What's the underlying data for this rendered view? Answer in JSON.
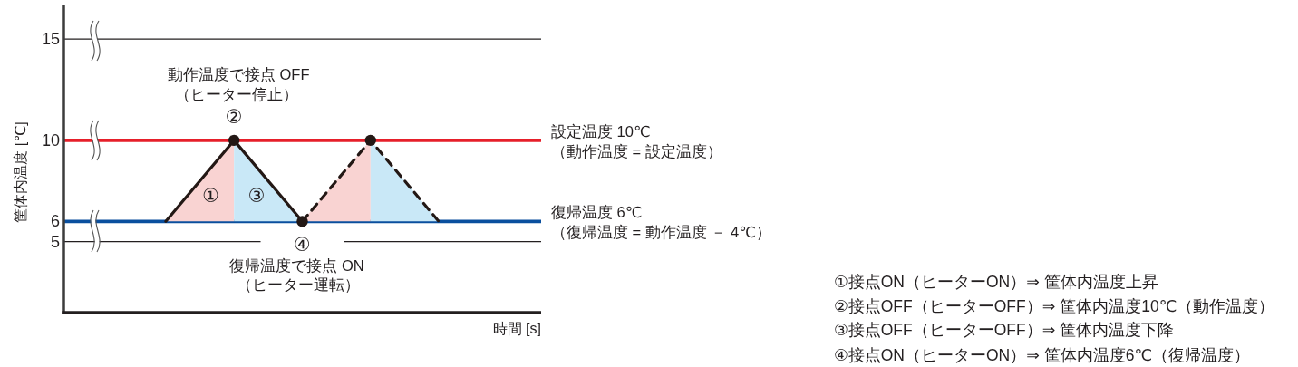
{
  "chart_data": {
    "type": "line",
    "ylabel": "筐体内温度 [℃]",
    "xlabel": "時間 [s]",
    "categories": [
      null,
      null,
      null,
      null,
      null,
      null,
      null
    ],
    "ylim": [
      1.5,
      16.7
    ],
    "yticks": [
      5,
      6,
      10,
      15
    ],
    "grid": "y",
    "series": [
      {
        "type": "area",
        "color": "#f9d3d2",
        "values": [
          null,
          6,
          10,
          null,
          null,
          null,
          null
        ]
      },
      {
        "type": "area",
        "color": "#c9e8f7",
        "values": [
          null,
          null,
          10,
          6,
          null,
          null,
          null
        ]
      },
      {
        "type": "area",
        "color": "#f9d3d2",
        "values": [
          null,
          null,
          null,
          6,
          10,
          null,
          null
        ]
      },
      {
        "type": "area",
        "color": "#c9e8f7",
        "values": [
          null,
          null,
          null,
          null,
          10,
          6,
          null
        ]
      },
      {
        "type": "line",
        "color": "#231815",
        "values": [
          null,
          6,
          10,
          6,
          null,
          null,
          null
        ],
        "line_style": "solid",
        "marker": "none"
      },
      {
        "type": "line",
        "color": "#231815",
        "values": [
          null,
          null,
          null,
          6,
          10,
          6,
          null
        ],
        "line_style": "dashed",
        "marker": "none"
      },
      {
        "type": "scatter",
        "color": "#231815",
        "values": [
          null,
          null,
          10,
          6,
          10,
          null,
          null
        ],
        "marker": "circle"
      }
    ],
    "ref_lines": [
      {
        "axis": "y",
        "value": 10,
        "label": "設定温度 10℃\n（動作温度 = 設定温度）",
        "color": "#e61f2a"
      },
      {
        "axis": "y",
        "value": 6,
        "label": "復帰温度 6℃\n（復帰温度 = 動作温度 － 4℃）",
        "color": "#0a4f9e"
      }
    ],
    "annotations": [
      {
        "text": "②",
        "y": 10
      },
      "動作温度で接点 OFF",
      "（ヒーター停止）",
      "①",
      "③",
      {
        "text": "④",
        "y": 6
      },
      "復帰温度で接点 ON",
      "（ヒーター運転）",
      "①接点ON（ヒーターON）⇒ 筐体内温度上昇",
      "②接点OFF（ヒーターOFF）⇒ 筐体内温度10℃（動作温度）",
      "③接点OFF（ヒーターOFF）⇒ 筐体内温度下降",
      "④接点ON（ヒーターON）⇒ 筐体内温度6℃（復帰温度）"
    ]
  }
}
